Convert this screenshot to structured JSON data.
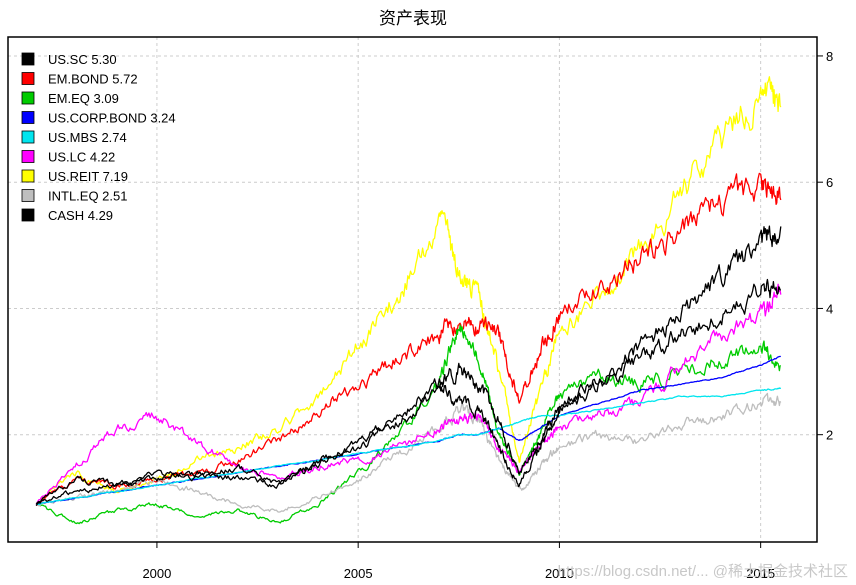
{
  "chart_data": {
    "type": "line",
    "title": "资产表现",
    "xlabel": "",
    "ylabel": "",
    "xlim": [
      1996.3,
      2016.4
    ],
    "ylim": [
      0.3,
      8.3
    ],
    "x_ticks": [
      2000,
      2005,
      2010,
      2015
    ],
    "x_tick_labels": [
      "2000",
      "2005",
      "2010",
      "2015"
    ],
    "y_ticks": [
      2,
      4,
      6,
      8
    ],
    "y_tick_labels": [
      "2",
      "4",
      "6",
      "8"
    ],
    "y_axis_side": "right",
    "grid": true,
    "legend_position": "top-left",
    "x": [
      1997.0,
      1998.0,
      1999.0,
      2000.0,
      2001.0,
      2002.0,
      2003.0,
      2004.0,
      2005.0,
      2006.0,
      2007.0,
      2007.5,
      2008.0,
      2008.5,
      2009.0,
      2009.5,
      2010.0,
      2011.0,
      2012.0,
      2013.0,
      2014.0,
      2015.0,
      2015.5
    ],
    "series": [
      {
        "name": "US.SC",
        "final": "5.30",
        "label": "US.SC 5.30",
        "color": "#000000",
        "values": [
          0.9,
          1.3,
          1.2,
          1.4,
          1.3,
          1.5,
          1.2,
          1.6,
          1.8,
          2.2,
          2.7,
          2.5,
          2.4,
          1.8,
          1.2,
          1.8,
          2.4,
          2.9,
          3.4,
          3.9,
          4.5,
          5.0,
          5.3
        ]
      },
      {
        "name": "EM.BOND",
        "final": "5.72",
        "label": "EM.BOND 5.72",
        "color": "#ff0000",
        "values": [
          0.9,
          1.3,
          1.2,
          1.3,
          1.4,
          1.6,
          1.9,
          2.4,
          2.8,
          3.2,
          3.6,
          3.7,
          3.7,
          3.6,
          2.5,
          3.3,
          3.9,
          4.3,
          4.8,
          5.2,
          5.7,
          5.9,
          5.72
        ]
      },
      {
        "name": "EM.EQ",
        "final": "3.09",
        "label": "EM.EQ 3.09",
        "color": "#00cc00",
        "values": [
          0.9,
          0.6,
          0.8,
          0.9,
          0.7,
          0.8,
          0.6,
          0.9,
          1.4,
          2.0,
          2.8,
          3.7,
          3.2,
          2.0,
          1.4,
          2.0,
          2.6,
          2.9,
          2.8,
          3.0,
          3.2,
          3.4,
          3.09
        ]
      },
      {
        "name": "US.CORP.BOND",
        "final": "3.24",
        "label": "US.CORP.BOND 3.24",
        "color": "#0000ff",
        "values": [
          0.9,
          1.0,
          1.1,
          1.2,
          1.3,
          1.4,
          1.5,
          1.6,
          1.7,
          1.8,
          1.9,
          2.0,
          2.0,
          2.1,
          1.9,
          2.1,
          2.3,
          2.5,
          2.7,
          2.8,
          2.9,
          3.1,
          3.24
        ]
      },
      {
        "name": "US.MBS",
        "final": "2.74",
        "label": "US.MBS 2.74",
        "color": "#00e5ee",
        "values": [
          0.9,
          1.0,
          1.1,
          1.2,
          1.3,
          1.4,
          1.5,
          1.6,
          1.7,
          1.8,
          1.9,
          2.0,
          2.0,
          2.1,
          2.2,
          2.3,
          2.3,
          2.4,
          2.5,
          2.6,
          2.6,
          2.7,
          2.74
        ]
      },
      {
        "name": "US.LC",
        "final": "4.22",
        "label": "US.LC 4.22",
        "color": "#ff00ff",
        "values": [
          0.9,
          1.5,
          2.1,
          2.3,
          1.9,
          1.5,
          1.3,
          1.5,
          1.6,
          1.8,
          2.1,
          2.2,
          2.3,
          1.8,
          1.4,
          1.8,
          2.1,
          2.3,
          2.5,
          3.1,
          3.6,
          3.9,
          4.22
        ]
      },
      {
        "name": "US.REIT",
        "final": "7.19",
        "label": "US.REIT 7.19",
        "color": "#ffff00",
        "values": [
          0.9,
          1.4,
          1.1,
          1.3,
          1.6,
          1.8,
          2.1,
          2.6,
          3.4,
          4.2,
          5.4,
          4.6,
          4.2,
          3.0,
          1.6,
          2.6,
          3.6,
          4.2,
          5.0,
          5.8,
          6.6,
          7.4,
          7.19
        ]
      },
      {
        "name": "INTL.EQ",
        "final": "2.51",
        "label": "INTL.EQ 2.51",
        "color": "#bebebe",
        "values": [
          0.9,
          1.0,
          1.1,
          1.3,
          1.1,
          0.9,
          0.8,
          1.0,
          1.3,
          1.7,
          2.1,
          2.4,
          2.2,
          1.6,
          1.1,
          1.5,
          1.8,
          2.0,
          1.9,
          2.2,
          2.3,
          2.5,
          2.51
        ]
      },
      {
        "name": "CASH",
        "final": "4.29",
        "label": "CASH 4.29",
        "color": "#000000",
        "values": [
          0.9,
          1.1,
          1.2,
          1.3,
          1.4,
          1.3,
          1.2,
          1.5,
          1.9,
          2.3,
          2.8,
          3.0,
          2.8,
          2.2,
          1.4,
          1.9,
          2.4,
          2.8,
          3.2,
          3.6,
          3.9,
          4.3,
          4.29
        ]
      }
    ]
  },
  "watermark": "https://blog.csdn.net/... @稀土掘金技术社区"
}
